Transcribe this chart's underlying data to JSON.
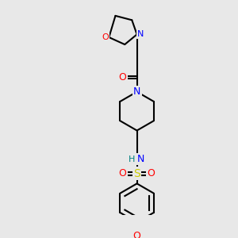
{
  "bg_color": "#e8e8e8",
  "atom_colors": {
    "C": "#000000",
    "N": "#0000ff",
    "O": "#ff0000",
    "S": "#cccc00",
    "H": "#008080"
  },
  "figsize": [
    3.0,
    3.0
  ],
  "dpi": 100
}
